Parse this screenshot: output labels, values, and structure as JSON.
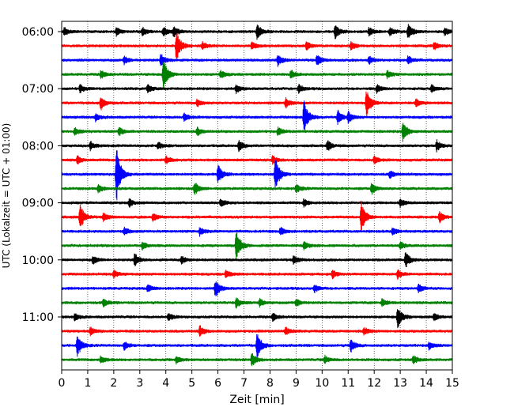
{
  "chart_data": {
    "type": "line",
    "title": "",
    "xlabel": "Zeit  [min]",
    "ylabel": "UTC (Lokalzeit = UTC + 01:00)",
    "xlim": [
      0,
      15
    ],
    "x_ticks": [
      "0",
      "1",
      "2",
      "3",
      "4",
      "5",
      "6",
      "7",
      "8",
      "9",
      "10",
      "11",
      "12",
      "13",
      "14",
      "15"
    ],
    "y_ticks": [
      "06:00",
      "07:00",
      "08:00",
      "09:00",
      "10:00",
      "11:00"
    ],
    "grid": "vertical dotted",
    "legend": "none",
    "colors": [
      "#000000",
      "#ff0000",
      "#0000ff",
      "#008000"
    ],
    "traces": [
      {
        "start": "06:00",
        "color": "#000000",
        "events": [
          [
            0.1,
            0.3
          ],
          [
            2.1,
            0.3
          ],
          [
            3.1,
            0.3
          ],
          [
            3.9,
            0.4
          ],
          [
            4.3,
            0.4
          ],
          [
            7.5,
            0.6
          ],
          [
            10.5,
            0.5
          ],
          [
            11.8,
            0.3
          ],
          [
            12.6,
            0.3
          ],
          [
            13.3,
            0.6
          ],
          [
            14.7,
            0.3
          ]
        ]
      },
      {
        "start": "06:15",
        "color": "#ff0000",
        "events": [
          [
            4.4,
            1.2
          ],
          [
            5.4,
            0.3
          ],
          [
            7.3,
            0.3
          ],
          [
            9.4,
            0.3
          ],
          [
            11.1,
            0.3
          ],
          [
            14.3,
            0.3
          ]
        ]
      },
      {
        "start": "06:30",
        "color": "#0000ff",
        "events": [
          [
            2.4,
            0.3
          ],
          [
            3.8,
            0.5
          ],
          [
            8.3,
            0.4
          ],
          [
            9.8,
            0.4
          ],
          [
            11.8,
            0.3
          ],
          [
            13.3,
            0.3
          ]
        ]
      },
      {
        "start": "06:45",
        "color": "#008000",
        "events": [
          [
            1.5,
            0.3
          ],
          [
            3.9,
            1.2
          ],
          [
            6.1,
            0.3
          ],
          [
            8.8,
            0.3
          ],
          [
            12.5,
            0.3
          ]
        ]
      },
      {
        "start": "07:00",
        "color": "#000000",
        "events": [
          [
            0.7,
            0.3
          ],
          [
            3.3,
            0.3
          ],
          [
            6.7,
            0.3
          ],
          [
            9.1,
            0.3
          ],
          [
            12.1,
            0.3
          ],
          [
            14.2,
            0.3
          ]
        ]
      },
      {
        "start": "07:15",
        "color": "#ff0000",
        "events": [
          [
            1.5,
            0.5
          ],
          [
            5.2,
            0.3
          ],
          [
            8.6,
            0.4
          ],
          [
            11.7,
            1.1
          ],
          [
            13.6,
            0.3
          ]
        ]
      },
      {
        "start": "07:30",
        "color": "#0000ff",
        "events": [
          [
            1.3,
            0.3
          ],
          [
            4.7,
            0.3
          ],
          [
            9.3,
            1.3
          ],
          [
            10.6,
            0.5
          ],
          [
            11.0,
            0.4
          ]
        ]
      },
      {
        "start": "07:45",
        "color": "#008000",
        "events": [
          [
            0.5,
            0.3
          ],
          [
            2.2,
            0.3
          ],
          [
            5.2,
            0.3
          ],
          [
            8.3,
            0.3
          ],
          [
            13.1,
            0.8
          ]
        ]
      },
      {
        "start": "08:00",
        "color": "#000000",
        "events": [
          [
            1.1,
            0.3
          ],
          [
            3.7,
            0.3
          ],
          [
            6.8,
            0.4
          ],
          [
            10.2,
            0.4
          ],
          [
            14.4,
            0.4
          ]
        ]
      },
      {
        "start": "08:15",
        "color": "#ff0000",
        "events": [
          [
            0.6,
            0.3
          ],
          [
            4.0,
            0.3
          ],
          [
            8.1,
            0.3
          ],
          [
            12.0,
            0.3
          ]
        ]
      },
      {
        "start": "08:30",
        "color": "#0000ff",
        "events": [
          [
            2.1,
            2.2
          ],
          [
            6.0,
            0.7
          ],
          [
            8.2,
            1.3
          ],
          [
            12.6,
            0.3
          ]
        ]
      },
      {
        "start": "08:45",
        "color": "#008000",
        "events": [
          [
            1.4,
            0.3
          ],
          [
            5.1,
            0.5
          ],
          [
            9.0,
            0.3
          ],
          [
            11.9,
            0.4
          ]
        ]
      },
      {
        "start": "09:00",
        "color": "#000000",
        "events": [
          [
            2.6,
            0.3
          ],
          [
            6.1,
            0.3
          ],
          [
            9.3,
            0.3
          ],
          [
            13.0,
            0.3
          ]
        ]
      },
      {
        "start": "09:15",
        "color": "#ff0000",
        "events": [
          [
            0.7,
            1.0
          ],
          [
            1.6,
            0.3
          ],
          [
            3.5,
            0.3
          ],
          [
            11.5,
            1.2
          ],
          [
            14.5,
            0.4
          ]
        ]
      },
      {
        "start": "09:30",
        "color": "#0000ff",
        "events": [
          [
            2.4,
            0.3
          ],
          [
            5.3,
            0.3
          ],
          [
            8.4,
            0.3
          ],
          [
            12.7,
            0.3
          ]
        ]
      },
      {
        "start": "09:45",
        "color": "#008000",
        "events": [
          [
            3.1,
            0.3
          ],
          [
            6.7,
            1.2
          ],
          [
            9.3,
            0.3
          ],
          [
            13.0,
            0.3
          ]
        ]
      },
      {
        "start": "10:00",
        "color": "#000000",
        "events": [
          [
            1.2,
            0.3
          ],
          [
            2.8,
            0.5
          ],
          [
            4.6,
            0.3
          ],
          [
            8.9,
            0.3
          ],
          [
            13.2,
            0.6
          ]
        ]
      },
      {
        "start": "10:15",
        "color": "#ff0000",
        "events": [
          [
            2.0,
            0.3
          ],
          [
            6.3,
            0.3
          ],
          [
            10.4,
            0.3
          ],
          [
            12.9,
            0.3
          ]
        ]
      },
      {
        "start": "10:30",
        "color": "#0000ff",
        "events": [
          [
            3.3,
            0.3
          ],
          [
            5.9,
            0.7
          ],
          [
            9.7,
            0.3
          ],
          [
            13.7,
            0.3
          ]
        ]
      },
      {
        "start": "10:45",
        "color": "#008000",
        "events": [
          [
            1.6,
            0.3
          ],
          [
            6.7,
            0.4
          ],
          [
            7.6,
            0.3
          ],
          [
            9.0,
            0.3
          ],
          [
            12.3,
            0.3
          ]
        ]
      },
      {
        "start": "11:00",
        "color": "#000000",
        "events": [
          [
            0.5,
            0.3
          ],
          [
            4.1,
            0.3
          ],
          [
            8.1,
            0.3
          ],
          [
            12.9,
            0.8
          ],
          [
            14.3,
            0.3
          ]
        ]
      },
      {
        "start": "11:15",
        "color": "#ff0000",
        "events": [
          [
            1.1,
            0.3
          ],
          [
            5.3,
            0.4
          ],
          [
            8.6,
            0.3
          ],
          [
            11.6,
            0.3
          ]
        ]
      },
      {
        "start": "11:30",
        "color": "#0000ff",
        "events": [
          [
            0.6,
            0.8
          ],
          [
            2.4,
            0.3
          ],
          [
            7.5,
            1.0
          ],
          [
            11.1,
            0.5
          ],
          [
            14.1,
            0.3
          ]
        ]
      },
      {
        "start": "11:45",
        "color": "#008000",
        "events": [
          [
            1.5,
            0.3
          ],
          [
            4.4,
            0.3
          ],
          [
            7.3,
            0.5
          ],
          [
            10.1,
            0.3
          ],
          [
            13.5,
            0.3
          ]
        ]
      }
    ]
  }
}
